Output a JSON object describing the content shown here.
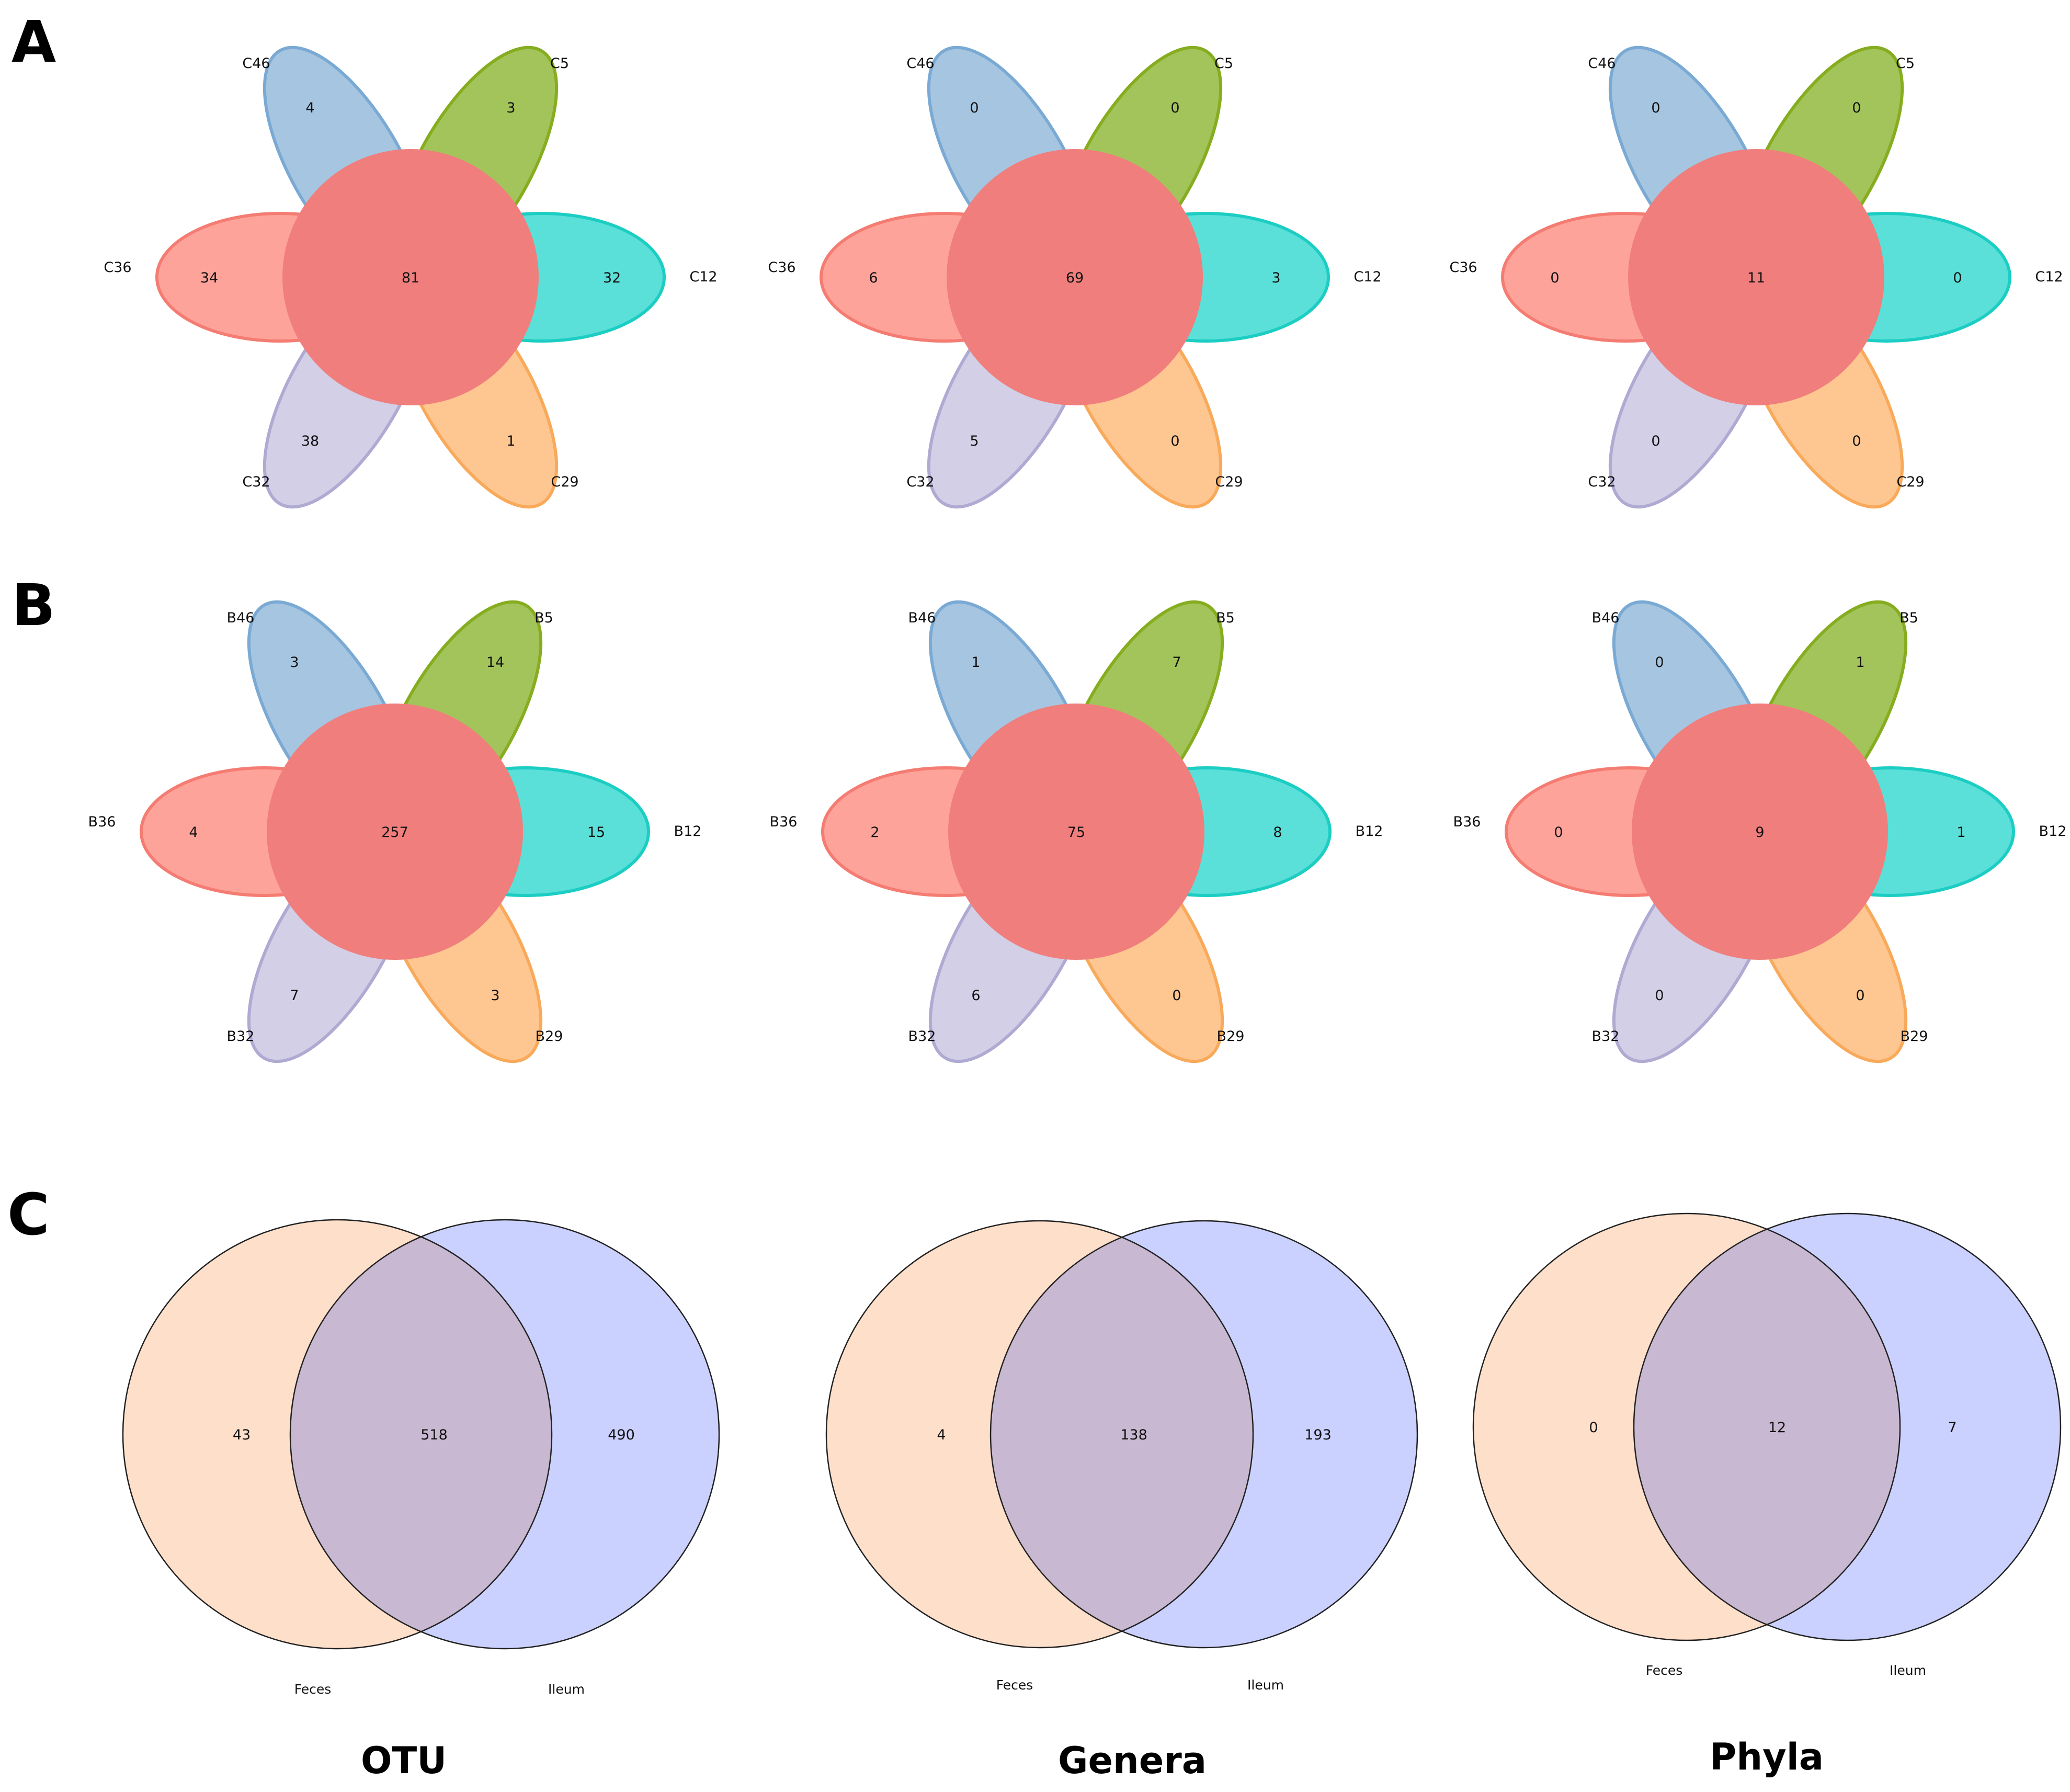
{
  "panels": [
    {
      "letter": "A"
    },
    {
      "letter": "B"
    },
    {
      "letter": "C"
    }
  ],
  "colors": {
    "petal_top_left": "#a6c5e0",
    "petal_top_left_stroke": "#7aaad4",
    "petal_top_right": "#a3c45a",
    "petal_top_right_stroke": "#86ad1f",
    "petal_right": "#5ae0d8",
    "petal_right_stroke": "#1ccdc3",
    "petal_bottom_right": "#fec690",
    "petal_bottom_right_stroke": "#f8a95a",
    "petal_bottom_left": "#d2cfe6",
    "petal_bottom_left_stroke": "#aeaad2",
    "petal_left": "#fea39a",
    "petal_left_stroke": "#f47c72",
    "core": "#f07e7c",
    "venn_left": "#fedfca",
    "venn_right": "#cad1fe",
    "venn_overlap": "#c8b8d1"
  },
  "flowers": [
    {
      "row": "A",
      "col": 0,
      "labels": {
        "top_left": "C46",
        "top_right": "C5",
        "right": "C12",
        "bottom_right": "C29",
        "bottom_left": "C32",
        "left": "C36"
      },
      "values": {
        "top_left": "4",
        "top_right": "3",
        "right": "32",
        "bottom_right": "1",
        "bottom_left": "38",
        "left": "34",
        "core": "81"
      }
    },
    {
      "row": "A",
      "col": 1,
      "labels": {
        "top_left": "C46",
        "top_right": "C5",
        "right": "C12",
        "bottom_right": "C29",
        "bottom_left": "C32",
        "left": "C36"
      },
      "values": {
        "top_left": "0",
        "top_right": "0",
        "right": "3",
        "bottom_right": "0",
        "bottom_left": "5",
        "left": "6",
        "core": "69"
      }
    },
    {
      "row": "A",
      "col": 2,
      "labels": {
        "top_left": "C46",
        "top_right": "C5",
        "right": "C12",
        "bottom_right": "C29",
        "bottom_left": "C32",
        "left": "C36"
      },
      "values": {
        "top_left": "0",
        "top_right": "0",
        "right": "0",
        "bottom_right": "0",
        "bottom_left": "0",
        "left": "0",
        "core": "11"
      }
    },
    {
      "row": "B",
      "col": 0,
      "labels": {
        "top_left": "B46",
        "top_right": "B5",
        "right": "B12",
        "bottom_right": "B29",
        "bottom_left": "B32",
        "left": "B36"
      },
      "values": {
        "top_left": "3",
        "top_right": "14",
        "right": "15",
        "bottom_right": "3",
        "bottom_left": "7",
        "left": "4",
        "core": "257"
      }
    },
    {
      "row": "B",
      "col": 1,
      "labels": {
        "top_left": "B46",
        "top_right": "B5",
        "right": "B12",
        "bottom_right": "B29",
        "bottom_left": "B32",
        "left": "B36"
      },
      "values": {
        "top_left": "1",
        "top_right": "7",
        "right": "8",
        "bottom_right": "0",
        "bottom_left": "6",
        "left": "2",
        "core": "75"
      }
    },
    {
      "row": "B",
      "col": 2,
      "labels": {
        "top_left": "B46",
        "top_right": "B5",
        "right": "B12",
        "bottom_right": "B29",
        "bottom_left": "B32",
        "left": "B36"
      },
      "values": {
        "top_left": "0",
        "top_right": "1",
        "right": "1",
        "bottom_right": "0",
        "bottom_left": "0",
        "left": "0",
        "core": "9"
      }
    }
  ],
  "venns": [
    {
      "left_label": "Feces",
      "right_label": "Ileum",
      "left_value": "43",
      "overlap_value": "518",
      "right_value": "490"
    },
    {
      "left_label": "Feces",
      "right_label": "Ileum",
      "left_value": "4",
      "overlap_value": "138",
      "right_value": "193"
    },
    {
      "left_label": "Feces",
      "right_label": "Ileum",
      "left_value": "0",
      "overlap_value": "12",
      "right_value": "7"
    }
  ],
  "column_titles": [
    "OTU",
    "Genera",
    "Phyla"
  ]
}
